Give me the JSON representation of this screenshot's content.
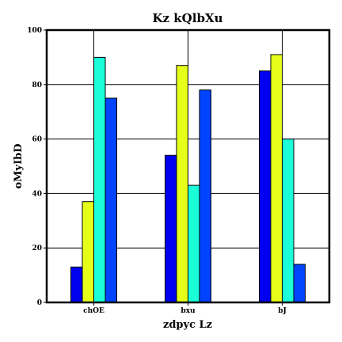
{
  "chart_data": {
    "type": "bar",
    "title": "Kz kQlbXu",
    "xlabel": "zdpyc Lz",
    "ylabel": "oMyIbD",
    "categories": [
      "chOE",
      "bxu",
      "bJ"
    ],
    "ylim": [
      0,
      100
    ],
    "yticks": [
      0,
      20,
      40,
      60,
      80,
      100
    ],
    "grid": true,
    "series": [
      {
        "color": "#0000ee",
        "values": [
          13,
          54,
          85
        ]
      },
      {
        "color": "#e6ff1a",
        "values": [
          37,
          87,
          91
        ]
      },
      {
        "color": "#1affd8",
        "values": [
          90,
          43,
          60
        ]
      },
      {
        "color": "#0044ff",
        "values": [
          75,
          78,
          14
        ]
      }
    ]
  }
}
